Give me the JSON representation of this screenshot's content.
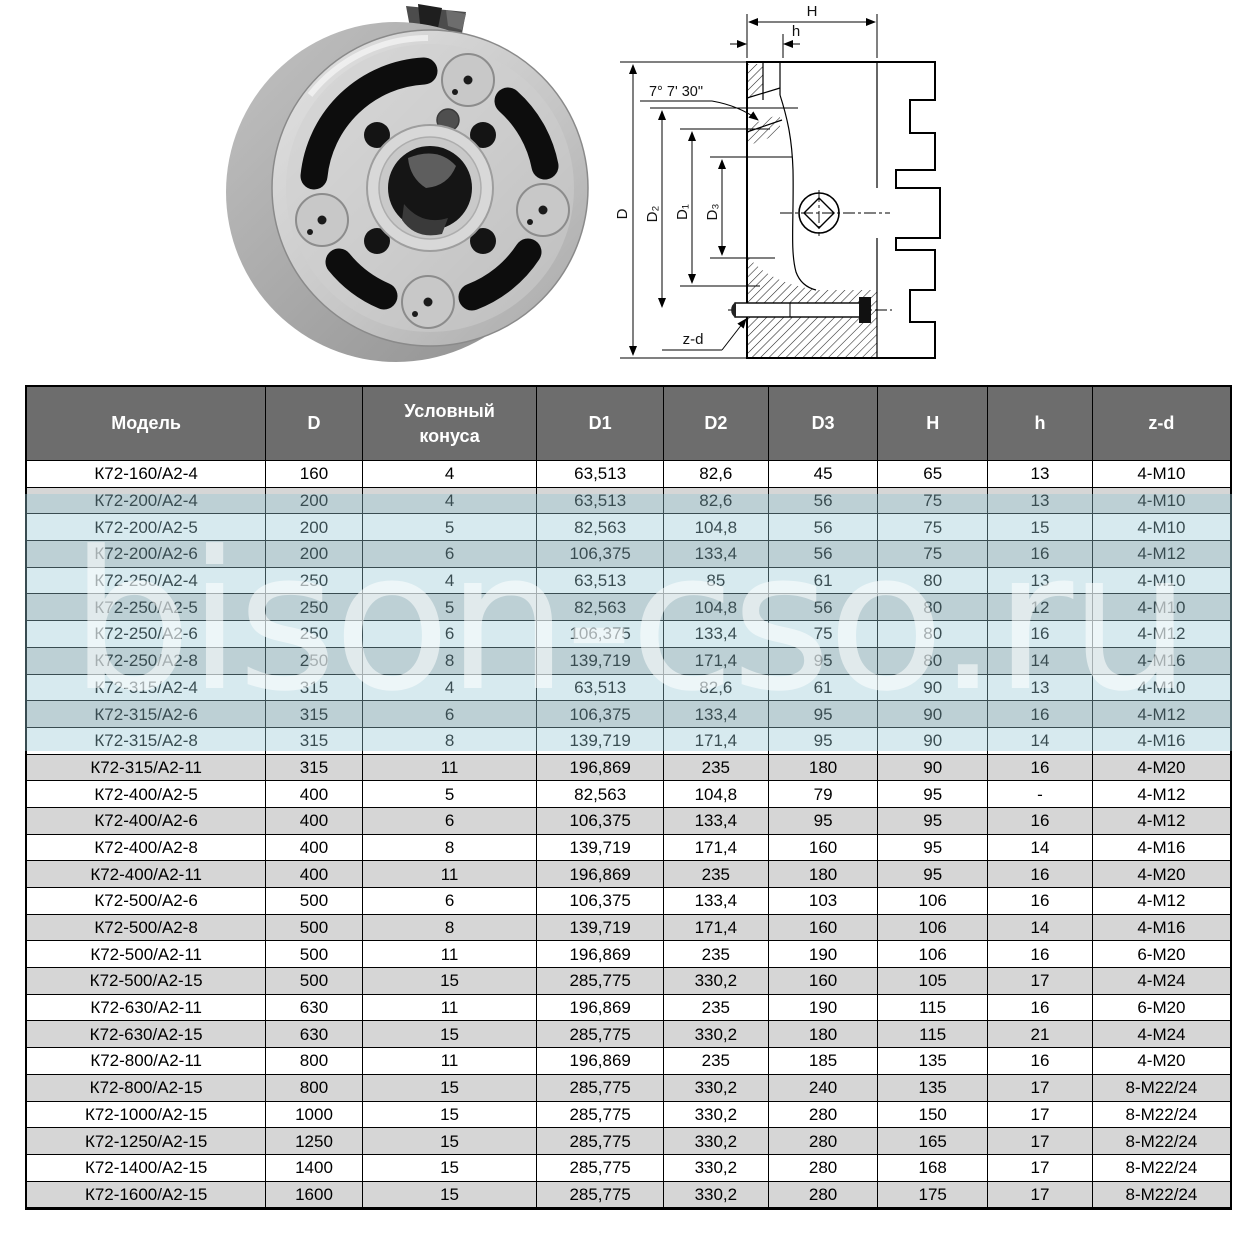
{
  "watermark": {
    "text": "bison-cso.ru",
    "band_color": "#bfdde6",
    "text_color": "#ffffff"
  },
  "photo": {
    "alt": "three-jaw-lathe-chuck-rear-view-photo"
  },
  "drawing": {
    "alt": "chuck-cross-section-drawing",
    "labels": {
      "H": "H",
      "h": "h",
      "angle": "7° 7' 30\"",
      "D": "D",
      "D2": "D₂",
      "D1": "D₁",
      "D3": "D₃",
      "zd": "z-d"
    }
  },
  "table": {
    "header_bg": "#6d6d6d",
    "row_alt_bg": "#d6d6d6",
    "columns": [
      "Модель",
      "D",
      "Условный\nконуса",
      "D1",
      "D2",
      "D3",
      "H",
      "h",
      "z-d"
    ],
    "column_keys": [
      "model",
      "d",
      "cone",
      "d1",
      "d2",
      "d3",
      "h",
      "h-small",
      "z-d"
    ],
    "rows": [
      [
        "К72-160/А2-4",
        "160",
        "4",
        "63,513",
        "82,6",
        "45",
        "65",
        "13",
        "4-М10"
      ],
      [
        "К72-200/А2-4",
        "200",
        "4",
        "63,513",
        "82,6",
        "56",
        "75",
        "13",
        "4-М10"
      ],
      [
        "К72-200/А2-5",
        "200",
        "5",
        "82,563",
        "104,8",
        "56",
        "75",
        "15",
        "4-М10"
      ],
      [
        "К72-200/А2-6",
        "200",
        "6",
        "106,375",
        "133,4",
        "56",
        "75",
        "16",
        "4-М12"
      ],
      [
        "К72-250/А2-4",
        "250",
        "4",
        "63,513",
        "85",
        "61",
        "80",
        "13",
        "4-М10"
      ],
      [
        "К72-250/А2-5",
        "250",
        "5",
        "82,563",
        "104,8",
        "56",
        "80",
        "12",
        "4-М10"
      ],
      [
        "К72-250/А2-6",
        "250",
        "6",
        "106,375",
        "133,4",
        "75",
        "80",
        "16",
        "4-М12"
      ],
      [
        "К72-250/А2-8",
        "250",
        "8",
        "139,719",
        "171,4",
        "95",
        "80",
        "14",
        "4-М16"
      ],
      [
        "К72-315/А2-4",
        "315",
        "4",
        "63,513",
        "82,6",
        "61",
        "90",
        "13",
        "4-М10"
      ],
      [
        "К72-315/А2-6",
        "315",
        "6",
        "106,375",
        "133,4",
        "95",
        "90",
        "16",
        "4-М12"
      ],
      [
        "К72-315/А2-8",
        "315",
        "8",
        "139,719",
        "171,4",
        "95",
        "90",
        "14",
        "4-М16"
      ],
      [
        "К72-315/А2-11",
        "315",
        "11",
        "196,869",
        "235",
        "180",
        "90",
        "16",
        "4-М20"
      ],
      [
        "К72-400/А2-5",
        "400",
        "5",
        "82,563",
        "104,8",
        "79",
        "95",
        "-",
        "4-М12"
      ],
      [
        "К72-400/А2-6",
        "400",
        "6",
        "106,375",
        "133,4",
        "95",
        "95",
        "16",
        "4-М12"
      ],
      [
        "К72-400/А2-8",
        "400",
        "8",
        "139,719",
        "171,4",
        "160",
        "95",
        "14",
        "4-М16"
      ],
      [
        "К72-400/А2-11",
        "400",
        "11",
        "196,869",
        "235",
        "180",
        "95",
        "16",
        "4-М20"
      ],
      [
        "К72-500/А2-6",
        "500",
        "6",
        "106,375",
        "133,4",
        "103",
        "106",
        "16",
        "4-М12"
      ],
      [
        "К72-500/А2-8",
        "500",
        "8",
        "139,719",
        "171,4",
        "160",
        "106",
        "14",
        "4-М16"
      ],
      [
        "К72-500/А2-11",
        "500",
        "11",
        "196,869",
        "235",
        "190",
        "106",
        "16",
        "6-М20"
      ],
      [
        "К72-500/А2-15",
        "500",
        "15",
        "285,775",
        "330,2",
        "160",
        "105",
        "17",
        "4-М24"
      ],
      [
        "К72-630/А2-11",
        "630",
        "11",
        "196,869",
        "235",
        "190",
        "115",
        "16",
        "6-М20"
      ],
      [
        "К72-630/А2-15",
        "630",
        "15",
        "285,775",
        "330,2",
        "180",
        "115",
        "21",
        "4-М24"
      ],
      [
        "К72-800/А2-11",
        "800",
        "11",
        "196,869",
        "235",
        "185",
        "135",
        "16",
        "4-М20"
      ],
      [
        "К72-800/А2-15",
        "800",
        "15",
        "285,775",
        "330,2",
        "240",
        "135",
        "17",
        "8-М22/24"
      ],
      [
        "К72-1000/А2-15",
        "1000",
        "15",
        "285,775",
        "330,2",
        "280",
        "150",
        "17",
        "8-М22/24"
      ],
      [
        "К72-1250/А2-15",
        "1250",
        "15",
        "285,775",
        "330,2",
        "280",
        "165",
        "17",
        "8-М22/24"
      ],
      [
        "К72-1400/А2-15",
        "1400",
        "15",
        "285,775",
        "330,2",
        "280",
        "168",
        "17",
        "8-М22/24"
      ],
      [
        "К72-1600/А2-15",
        "1600",
        "15",
        "285,775",
        "330,2",
        "280",
        "175",
        "17",
        "8-М22/24"
      ]
    ]
  }
}
